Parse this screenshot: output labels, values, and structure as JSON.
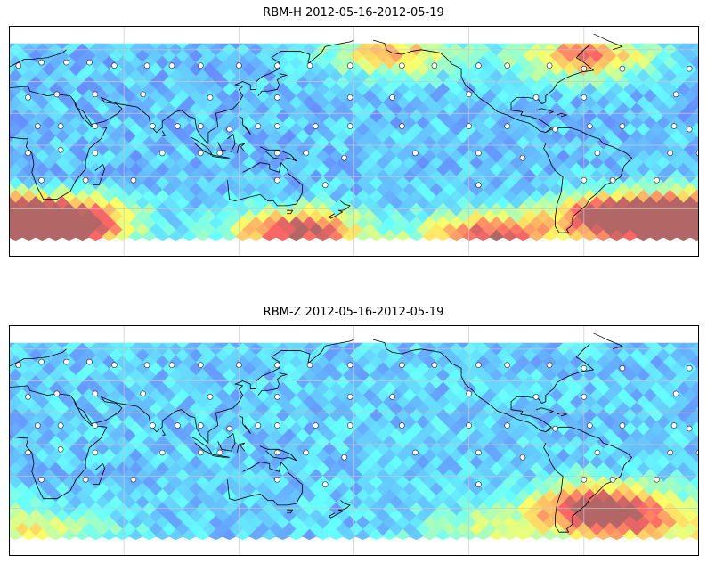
{
  "panels": [
    {
      "id": "top",
      "title": "RBM-H 2012-05-16-2012-05-19",
      "colormap": "jet",
      "alpha": 0.6,
      "field": {
        "baseline": 0.28,
        "hotspots": [
          {
            "lon": 150,
            "lat": -55,
            "amp": 0.72
          },
          {
            "lon": 250,
            "lat": -58,
            "amp": 0.68
          },
          {
            "lon": 320,
            "lat": -45,
            "amp": 0.78
          },
          {
            "lon": 350,
            "lat": -48,
            "amp": 0.75
          },
          {
            "lon": 30,
            "lat": -45,
            "amp": 0.55
          },
          {
            "lon": 20,
            "lat": -58,
            "amp": 0.7
          },
          {
            "lon": 300,
            "lat": 55,
            "amp": 0.55
          },
          {
            "lon": 200,
            "lat": 57,
            "amp": 0.45
          }
        ]
      }
    },
    {
      "id": "bottom",
      "title": "RBM-Z 2012-05-16-2012-05-19",
      "colormap": "jet",
      "alpha": 0.6,
      "field": {
        "baseline": 0.3,
        "hotspots": [
          {
            "lon": 308,
            "lat": -38,
            "amp": 0.62
          },
          {
            "lon": 320,
            "lat": -50,
            "amp": 0.42
          },
          {
            "lon": 20,
            "lat": -55,
            "amp": 0.28
          },
          {
            "lon": 250,
            "lat": -55,
            "amp": 0.25
          }
        ]
      }
    }
  ],
  "map": {
    "lon_range": [
      0,
      360
    ],
    "lat_range": [
      -70,
      75
    ],
    "data_lat_range": [
      -60,
      64
    ],
    "gridlines_lon": [
      60,
      120,
      180,
      240,
      300
    ],
    "gridlines_lat": [
      -40,
      -20,
      0,
      20,
      40,
      60
    ],
    "grid": true
  },
  "stations": [
    [
      5,
      50
    ],
    [
      17,
      52
    ],
    [
      30,
      52
    ],
    [
      42,
      52
    ],
    [
      55,
      50
    ],
    [
      72,
      50
    ],
    [
      85,
      50
    ],
    [
      100,
      50
    ],
    [
      120,
      50
    ],
    [
      140,
      50
    ],
    [
      157,
      50
    ],
    [
      178,
      50
    ],
    [
      205,
      50
    ],
    [
      222,
      50
    ],
    [
      245,
      50
    ],
    [
      260,
      50
    ],
    [
      282,
      50
    ],
    [
      300,
      48
    ],
    [
      320,
      48
    ],
    [
      355,
      48
    ],
    [
      10,
      30
    ],
    [
      25,
      32
    ],
    [
      45,
      32
    ],
    [
      70,
      32
    ],
    [
      105,
      30
    ],
    [
      140,
      30
    ],
    [
      178,
      30
    ],
    [
      200,
      30
    ],
    [
      240,
      32
    ],
    [
      275,
      30
    ],
    [
      300,
      30
    ],
    [
      348,
      32
    ],
    [
      15,
      12
    ],
    [
      27,
      12
    ],
    [
      45,
      12
    ],
    [
      75,
      12
    ],
    [
      88,
      12
    ],
    [
      100,
      12
    ],
    [
      115,
      10
    ],
    [
      130,
      12
    ],
    [
      140,
      12
    ],
    [
      160,
      12
    ],
    [
      178,
      12
    ],
    [
      205,
      12
    ],
    [
      240,
      12
    ],
    [
      260,
      12
    ],
    [
      285,
      10
    ],
    [
      303,
      12
    ],
    [
      320,
      12
    ],
    [
      347,
      12
    ],
    [
      355,
      10
    ],
    [
      10,
      -5
    ],
    [
      27,
      -3
    ],
    [
      45,
      -5
    ],
    [
      80,
      -5
    ],
    [
      100,
      -5
    ],
    [
      110,
      -5
    ],
    [
      140,
      -5
    ],
    [
      155,
      -5
    ],
    [
      175,
      -8
    ],
    [
      212,
      -5
    ],
    [
      245,
      -5
    ],
    [
      268,
      -8
    ],
    [
      307,
      -5
    ],
    [
      345,
      -5
    ],
    [
      360,
      -5
    ],
    [
      17,
      -22
    ],
    [
      40,
      -22
    ],
    [
      65,
      -22
    ],
    [
      140,
      -22
    ],
    [
      165,
      -25
    ],
    [
      245,
      -25
    ],
    [
      300,
      -22
    ],
    [
      315,
      -22
    ],
    [
      338,
      -22
    ]
  ]
}
